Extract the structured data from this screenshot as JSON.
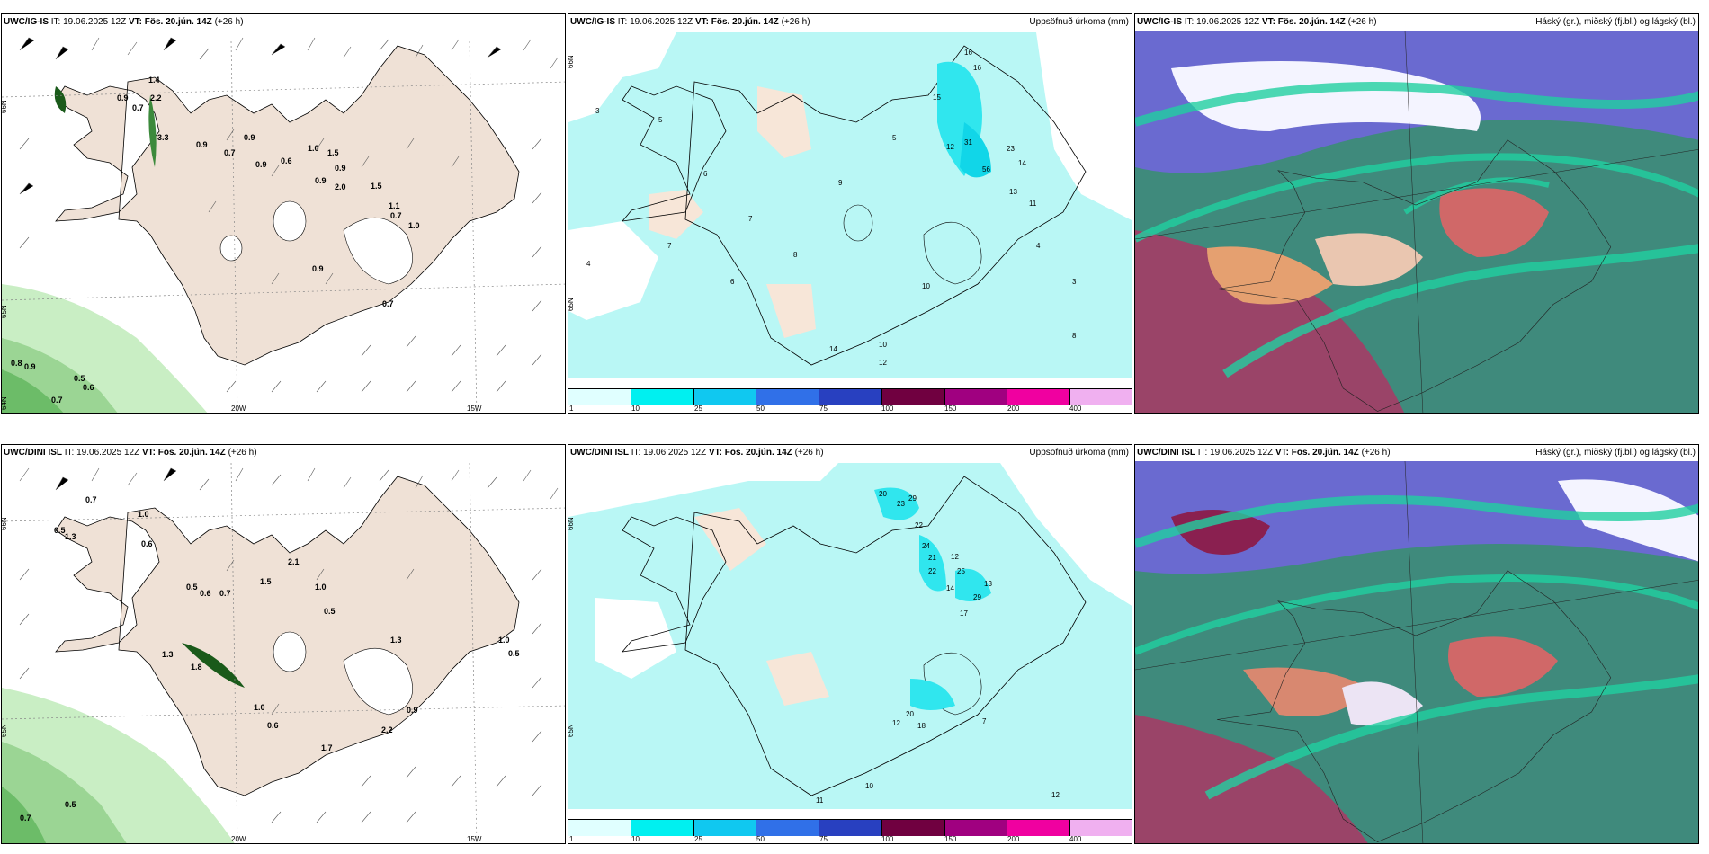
{
  "panels": [
    {
      "model": "UWC/IG-IS",
      "it_label": "IT:",
      "it_value": "19.06.2025 12Z",
      "vt_label": "VT:",
      "vt_value": "Fös. 20.jún. 14Z",
      "lead": "(+26 h)",
      "right_title": ""
    },
    {
      "model": "UWC/IG-IS",
      "it_label": "IT:",
      "it_value": "19.06.2025 12Z",
      "vt_label": "VT:",
      "vt_value": "Fös. 20.jún. 14Z",
      "lead": "(+26 h)",
      "right_title": "Uppsöfnuð úrkoma (mm)"
    },
    {
      "model": "UWC/IG-IS",
      "it_label": "IT:",
      "it_value": "19.06.2025 12Z",
      "vt_label": "VT:",
      "vt_value": "Fös. 20.jún. 14Z",
      "lead": "(+26 h)",
      "right_title": "Háský (gr.), miðský (fj.bl.) og lágský (bl.)"
    },
    {
      "model": "UWC/DINI ISL",
      "it_label": "IT:",
      "it_value": "19.06.2025 12Z",
      "vt_label": "VT:",
      "vt_value": "Fös. 20.jún. 14Z",
      "lead": "(+26 h)",
      "right_title": ""
    },
    {
      "model": "UWC/DINI ISL",
      "it_label": "IT:",
      "it_value": "19.06.2025 12Z",
      "vt_label": "VT:",
      "vt_value": "Fös. 20.jún. 14Z",
      "lead": "(+26 h)",
      "right_title": "Uppsöfnuð úrkoma (mm)"
    },
    {
      "model": "UWC/DINI ISL",
      "it_label": "IT:",
      "it_value": "19.06.2025 12Z",
      "vt_label": "VT:",
      "vt_value": "Fös. 20.jún. 14Z",
      "lead": "(+26 h)",
      "right_title": "Háský (gr.), miðský (fj.bl.) og lágský (bl.)"
    }
  ],
  "axes": {
    "lat1": "66N",
    "lat2": "65N",
    "lat3": "64N",
    "lon1": "20W",
    "lon2": "15W"
  },
  "colorbar": {
    "ticks": [
      "1",
      "10",
      "25",
      "50",
      "75",
      "100",
      "150",
      "200",
      "400"
    ],
    "colors": [
      "#e0ffff",
      "#00f0f0",
      "#10c8f0",
      "#3070e8",
      "#2840c0",
      "#700040",
      "#a00080",
      "#f000a0",
      "#f0b0f0"
    ]
  },
  "labels": {
    "wind_top": [
      "1.4",
      "0.9",
      "0.7",
      "2.2",
      "3.3",
      "0.9",
      "0.7",
      "0.9",
      "0.9",
      "0.6",
      "1.0",
      "1.5",
      "0.9",
      "0.9",
      "2.0",
      "1.5",
      "1.1",
      "0.7",
      "1.0",
      "0.9",
      "0.7",
      "0.8",
      "0.9",
      "0.5",
      "0.6",
      "0.7"
    ],
    "wind_bottom": [
      "0.7",
      "1.0",
      "0.5",
      "1.3",
      "0.6",
      "2.1",
      "0.5",
      "0.6",
      "0.7",
      "1.5",
      "1.0",
      "0.5",
      "1.3",
      "1.0",
      "0.5",
      "1.3",
      "1.8",
      "1.0",
      "0.6",
      "0.9",
      "1.7",
      "2.2",
      "0.5",
      "0.7"
    ],
    "precip_top": [
      "3",
      "4",
      "16",
      "16",
      "15",
      "31",
      "23",
      "56",
      "12",
      "14",
      "13",
      "11",
      "12",
      "10",
      "14",
      "5",
      "6",
      "7",
      "8",
      "9"
    ],
    "precip_bottom": [
      "20",
      "23",
      "29",
      "22",
      "24",
      "21",
      "12",
      "25",
      "22",
      "13",
      "14",
      "29",
      "17",
      "20",
      "18",
      "12",
      "12",
      "11",
      "10",
      "7"
    ]
  }
}
